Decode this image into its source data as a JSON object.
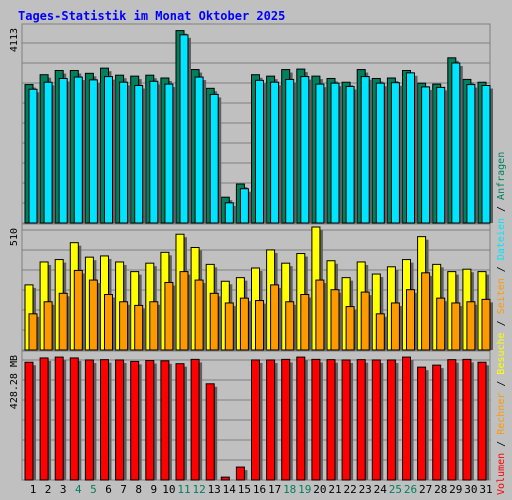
{
  "colors": {
    "background": "#c0c0c0",
    "title": "#0000ff",
    "grid": "#808080",
    "frame": "#000000",
    "anfragen": "#00805c",
    "dateien": "#00e4ff",
    "besuche": "#ffff00",
    "seiten": "#ff9900",
    "volumen": "#ff0000",
    "day_weekday": "#000000",
    "day_weekend": "#00805c"
  },
  "chart_data": {
    "title": "Tages-Statistik im Monat Oktober 2025",
    "days": [
      "1",
      "2",
      "3",
      "4",
      "5",
      "6",
      "7",
      "8",
      "9",
      "10",
      "11",
      "12",
      "13",
      "14",
      "15",
      "16",
      "17",
      "18",
      "19",
      "20",
      "21",
      "22",
      "23",
      "24",
      "25",
      "26",
      "27",
      "28",
      "29",
      "30",
      "31"
    ],
    "weekend_days": [
      "4",
      "5",
      "11",
      "12",
      "18",
      "19",
      "25",
      "26"
    ],
    "panels": [
      {
        "type": "bar",
        "max_label": "4113",
        "ylim": [
          0,
          4113
        ],
        "series": [
          {
            "name": "Anfragen",
            "color": "anfragen",
            "values": [
              2950,
              3160,
              3250,
              3250,
              3190,
              3300,
              3150,
              3130,
              3150,
              3090,
              4100,
              3270,
              2870,
              550,
              830,
              3160,
              3130,
              3270,
              3280,
              3130,
              3080,
              3000,
              3270,
              3080,
              3090,
              3250,
              2980,
              2960,
              3520,
              3060,
              3000
            ]
          },
          {
            "name": "Dateien",
            "color": "dateien",
            "values": [
              2850,
              3000,
              3080,
              3110,
              3050,
              3120,
              3000,
              2930,
              3020,
              2960,
              4010,
              3110,
              2740,
              430,
              730,
              3040,
              3000,
              3060,
              3120,
              2960,
              2980,
              2910,
              3120,
              2980,
              2990,
              3200,
              2900,
              2890,
              3410,
              2950,
              2930
            ]
          }
        ]
      },
      {
        "type": "bar",
        "max_label": "510",
        "ylim": [
          0,
          510
        ],
        "series": [
          {
            "name": "Besuche",
            "color": "besuche",
            "values": [
              270,
              365,
              375,
              445,
              385,
              390,
              365,
              325,
              360,
              405,
              480,
              425,
              355,
              285,
              300,
              340,
              415,
              360,
              400,
              510,
              370,
              300,
              365,
              315,
              345,
              375,
              470,
              355,
              325,
              335,
              325
            ]
          },
          {
            "name": "Seiten",
            "color": "seiten",
            "values": [
              150,
              200,
              235,
              330,
              290,
              230,
              200,
              185,
              200,
              280,
              325,
              290,
              235,
              195,
              215,
              205,
              270,
              200,
              230,
              290,
              250,
              180,
              240,
              150,
              195,
              250,
              320,
              215,
              195,
              200,
              210
            ]
          }
        ]
      },
      {
        "type": "bar",
        "max_label": "428.28 MB",
        "ylim": [
          0,
          428.28
        ],
        "series": [
          {
            "name": "Volumen",
            "color": "volumen",
            "values": [
              410,
              425,
              428,
              425,
              418,
              419,
              418,
              413,
              416,
              415,
              405,
              420,
              335,
              10,
              45,
              418,
              418,
              420,
              428,
              420,
              419,
              418,
              419,
              418,
              418,
              428,
              393,
              400,
              419,
              420,
              410
            ]
          }
        ]
      }
    ],
    "legend": [
      {
        "label": "Volumen",
        "color": "volumen"
      },
      {
        "label": "Rechner",
        "color": "seiten"
      },
      {
        "label": "Besuche",
        "color": "besuche"
      },
      {
        "label": "Seiten",
        "color": "seiten"
      },
      {
        "label": "Dateien",
        "color": "dateien"
      },
      {
        "label": "Anfragen",
        "color": "anfragen"
      }
    ],
    "legend_separator": " / "
  }
}
